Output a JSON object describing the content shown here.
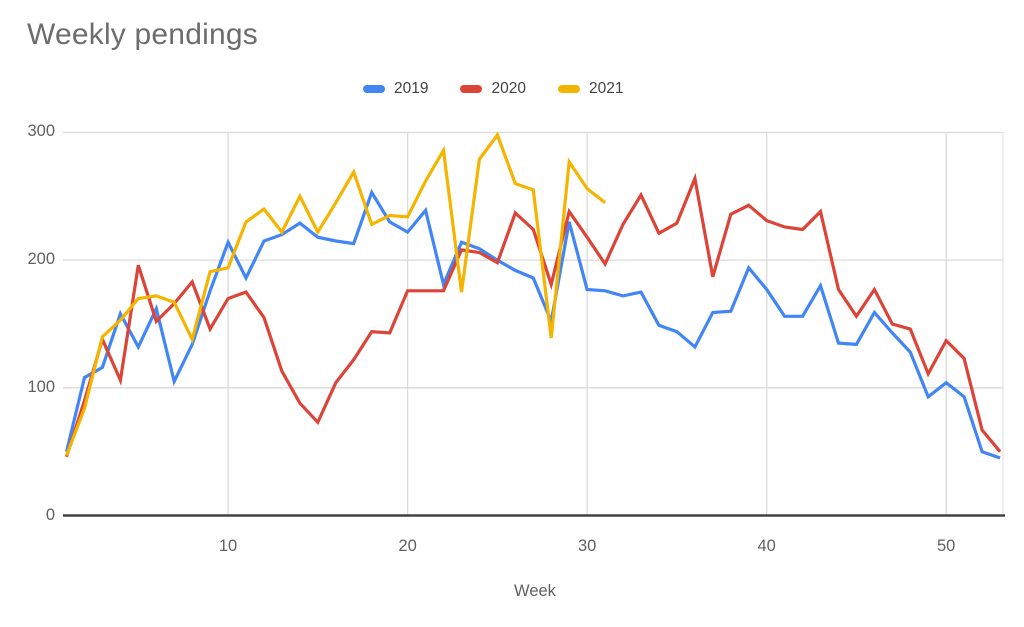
{
  "header": {
    "title": "Weekly pendings"
  },
  "legend": {
    "items": [
      {
        "label": "2019",
        "color": "#4285f4"
      },
      {
        "label": "2020",
        "color": "#db4437"
      },
      {
        "label": "2021",
        "color": "#f4b400"
      }
    ]
  },
  "x_axis": {
    "title": "Week"
  },
  "chart_data": {
    "type": "line",
    "title": "Weekly pendings",
    "xlabel": "Week",
    "ylabel": "",
    "ylim": [
      0,
      300
    ],
    "yticks": [
      0,
      100,
      200,
      300
    ],
    "xticks": [
      10,
      20,
      30,
      40,
      50
    ],
    "grid": true,
    "legend_position": "top",
    "x": [
      1,
      2,
      3,
      4,
      5,
      6,
      7,
      8,
      9,
      10,
      11,
      12,
      13,
      14,
      15,
      16,
      17,
      18,
      19,
      20,
      21,
      22,
      23,
      24,
      25,
      26,
      27,
      28,
      29,
      30,
      31,
      32,
      33,
      34,
      35,
      36,
      37,
      38,
      39,
      40,
      41,
      42,
      43,
      44,
      45,
      46,
      47,
      48,
      49,
      50,
      51,
      52,
      53
    ],
    "series": [
      {
        "name": "2019",
        "color": "#4285f4",
        "values": [
          50,
          108,
          116,
          158,
          132,
          162,
          105,
          134,
          176,
          214,
          186,
          215,
          220,
          229,
          218,
          215,
          213,
          253,
          230,
          222,
          239,
          181,
          214,
          209,
          200,
          192,
          186,
          152,
          230,
          177,
          176,
          172,
          175,
          149,
          144,
          132,
          159,
          160,
          194,
          177,
          156,
          156,
          180,
          135,
          134,
          159,
          143,
          128,
          93,
          104,
          93,
          50,
          45
        ]
      },
      {
        "name": "2020",
        "color": "#db4437",
        "values": [
          46,
          90,
          138,
          106,
          196,
          152,
          166,
          183,
          146,
          170,
          175,
          155,
          113,
          88,
          73,
          104,
          122,
          144,
          143,
          176,
          176,
          176,
          208,
          206,
          198,
          237,
          224,
          181,
          238,
          218,
          197,
          228,
          251,
          221,
          229,
          264,
          187,
          236,
          243,
          231,
          226,
          224,
          238,
          177,
          156,
          177,
          150,
          146,
          111,
          137,
          123,
          67,
          50
        ]
      },
      {
        "name": "2021",
        "color": "#f4b400",
        "values": [
          47,
          84,
          140,
          153,
          170,
          172,
          167,
          138,
          191,
          194,
          230,
          240,
          222,
          250,
          222,
          245,
          269,
          228,
          235,
          234,
          262,
          286,
          175,
          279,
          298,
          260,
          255,
          139,
          277,
          256,
          245
        ]
      }
    ]
  }
}
